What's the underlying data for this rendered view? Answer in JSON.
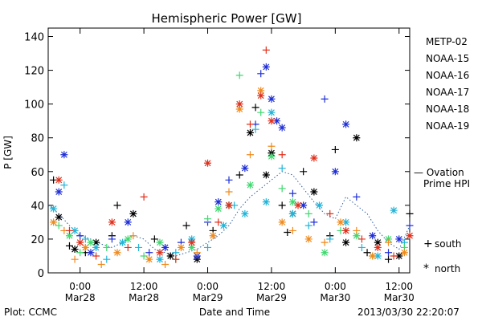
{
  "chart_data": {
    "type": "scatter",
    "title": "Hemispheric Power [GW]",
    "ylabel": "P [GW]",
    "xlabel": "Date and Time",
    "ylim": [
      0,
      145
    ],
    "yticks": [
      0,
      20,
      40,
      60,
      80,
      100,
      120,
      140
    ],
    "xlim_hours": [
      -6,
      62
    ],
    "xticks": [
      {
        "h": 0,
        "time": "0:00",
        "date": "Mar28"
      },
      {
        "h": 12,
        "time": "12:00",
        "date": "Mar28"
      },
      {
        "h": 24,
        "time": "0:00",
        "date": "Mar29"
      },
      {
        "h": 36,
        "time": "12:00",
        "date": "Mar29"
      },
      {
        "h": 48,
        "time": "0:00",
        "date": "Mar30"
      },
      {
        "h": 60,
        "time": "12:00",
        "date": "Mar30"
      }
    ],
    "footer_left": "Plot: CCMC",
    "footer_right": "2013/03/30 22:20:07",
    "legend_placement": "right",
    "symbol_legend": [
      {
        "symbol": "+",
        "label": "south"
      },
      {
        "symbol": "*",
        "label": "north"
      }
    ],
    "model": {
      "label_line1": "— Ovation",
      "label_line2": "Prime HPI",
      "color": "#2f5fa8",
      "style": "dotted",
      "points": [
        [
          -6,
          40
        ],
        [
          -4,
          35
        ],
        [
          -2,
          28
        ],
        [
          0,
          22
        ],
        [
          2,
          20
        ],
        [
          4,
          17
        ],
        [
          6,
          15
        ],
        [
          8,
          18
        ],
        [
          10,
          22
        ],
        [
          12,
          20
        ],
        [
          14,
          14
        ],
        [
          16,
          12
        ],
        [
          18,
          10
        ],
        [
          20,
          12
        ],
        [
          22,
          14
        ],
        [
          24,
          18
        ],
        [
          26,
          22
        ],
        [
          28,
          28
        ],
        [
          30,
          38
        ],
        [
          32,
          45
        ],
        [
          34,
          50
        ],
        [
          36,
          55
        ],
        [
          38,
          60
        ],
        [
          40,
          58
        ],
        [
          42,
          50
        ],
        [
          44,
          42
        ],
        [
          46,
          35
        ],
        [
          48,
          32
        ],
        [
          50,
          45
        ],
        [
          52,
          40
        ],
        [
          54,
          35
        ],
        [
          56,
          25
        ],
        [
          58,
          18
        ],
        [
          60,
          14
        ],
        [
          62,
          28
        ]
      ]
    },
    "series": [
      {
        "name": "METP-02",
        "color": "#000000",
        "points": [
          [
            -5,
            55,
            "s"
          ],
          [
            -4,
            33,
            "n"
          ],
          [
            -2,
            16,
            "s"
          ],
          [
            -1,
            14,
            "n"
          ],
          [
            1,
            12,
            "s"
          ],
          [
            3,
            18,
            "n"
          ],
          [
            6,
            22,
            "s"
          ],
          [
            7,
            40,
            "s"
          ],
          [
            10,
            35,
            "n"
          ],
          [
            14,
            20,
            "s"
          ],
          [
            17,
            10,
            "n"
          ],
          [
            20,
            28,
            "s"
          ],
          [
            22,
            8,
            "n"
          ],
          [
            25,
            25,
            "s"
          ],
          [
            28,
            40,
            "n"
          ],
          [
            30,
            58,
            "s"
          ],
          [
            32,
            83,
            "n"
          ],
          [
            33,
            98,
            "s"
          ],
          [
            35,
            58,
            "n"
          ],
          [
            36,
            71,
            "n"
          ],
          [
            38,
            40,
            "s"
          ],
          [
            39,
            24,
            "s"
          ],
          [
            40,
            35,
            "n"
          ],
          [
            42,
            60,
            "s"
          ],
          [
            44,
            48,
            "n"
          ],
          [
            47,
            22,
            "s"
          ],
          [
            48,
            73,
            "s"
          ],
          [
            50,
            18,
            "n"
          ],
          [
            52,
            80,
            "n"
          ],
          [
            54,
            12,
            "s"
          ],
          [
            56,
            18,
            "n"
          ],
          [
            58,
            8,
            "s"
          ],
          [
            60,
            10,
            "n"
          ],
          [
            62,
            35,
            "s"
          ]
        ]
      },
      {
        "name": "NOAA-15",
        "color": "#1f2fd6",
        "points": [
          [
            -4,
            48,
            "n"
          ],
          [
            -3,
            70,
            "n"
          ],
          [
            0,
            22,
            "s"
          ],
          [
            2,
            12,
            "n"
          ],
          [
            6,
            20,
            "s"
          ],
          [
            9,
            30,
            "n"
          ],
          [
            13,
            12,
            "s"
          ],
          [
            16,
            15,
            "n"
          ],
          [
            19,
            18,
            "s"
          ],
          [
            22,
            10,
            "n"
          ],
          [
            24,
            30,
            "s"
          ],
          [
            26,
            42,
            "n"
          ],
          [
            28,
            55,
            "s"
          ],
          [
            31,
            62,
            "n"
          ],
          [
            33,
            88,
            "s"
          ],
          [
            34,
            118,
            "s"
          ],
          [
            35,
            122,
            "n"
          ],
          [
            36,
            103,
            "n"
          ],
          [
            37,
            90,
            "n"
          ],
          [
            38,
            86,
            "n"
          ],
          [
            40,
            47,
            "s"
          ],
          [
            42,
            40,
            "n"
          ],
          [
            44,
            30,
            "s"
          ],
          [
            46,
            103,
            "s"
          ],
          [
            48,
            60,
            "n"
          ],
          [
            50,
            88,
            "n"
          ],
          [
            52,
            45,
            "s"
          ],
          [
            55,
            22,
            "n"
          ],
          [
            58,
            12,
            "s"
          ],
          [
            60,
            20,
            "n"
          ],
          [
            62,
            28,
            "s"
          ]
        ]
      },
      {
        "name": "NOAA-16",
        "color": "#22b4d8",
        "points": [
          [
            -5,
            38,
            "n"
          ],
          [
            -3,
            52,
            "s"
          ],
          [
            -1,
            25,
            "n"
          ],
          [
            1,
            20,
            "s"
          ],
          [
            3,
            15,
            "n"
          ],
          [
            5,
            8,
            "s"
          ],
          [
            8,
            18,
            "n"
          ],
          [
            11,
            15,
            "s"
          ],
          [
            15,
            8,
            "n"
          ],
          [
            18,
            12,
            "s"
          ],
          [
            21,
            20,
            "n"
          ],
          [
            24,
            15,
            "s"
          ],
          [
            27,
            28,
            "n"
          ],
          [
            29,
            40,
            "s"
          ],
          [
            31,
            35,
            "n"
          ],
          [
            33,
            85,
            "s"
          ],
          [
            35,
            42,
            "n"
          ],
          [
            36,
            95,
            "n"
          ],
          [
            38,
            62,
            "s"
          ],
          [
            40,
            35,
            "n"
          ],
          [
            43,
            28,
            "s"
          ],
          [
            45,
            40,
            "n"
          ],
          [
            47,
            20,
            "s"
          ],
          [
            50,
            30,
            "n"
          ],
          [
            53,
            15,
            "s"
          ],
          [
            56,
            10,
            "n"
          ],
          [
            59,
            37,
            "n"
          ],
          [
            61,
            18,
            "s"
          ]
        ]
      },
      {
        "name": "NOAA-17",
        "color": "#3ed86e",
        "points": [
          [
            -4,
            28,
            "s"
          ],
          [
            -2,
            22,
            "n"
          ],
          [
            0,
            12,
            "s"
          ],
          [
            2,
            18,
            "n"
          ],
          [
            5,
            15,
            "s"
          ],
          [
            9,
            20,
            "n"
          ],
          [
            12,
            10,
            "s"
          ],
          [
            15,
            18,
            "n"
          ],
          [
            18,
            8,
            "s"
          ],
          [
            21,
            15,
            "n"
          ],
          [
            24,
            32,
            "s"
          ],
          [
            26,
            38,
            "n"
          ],
          [
            28,
            40,
            "s"
          ],
          [
            30,
            117,
            "s"
          ],
          [
            32,
            52,
            "n"
          ],
          [
            34,
            95,
            "s"
          ],
          [
            36,
            69,
            "n"
          ],
          [
            38,
            50,
            "s"
          ],
          [
            40,
            42,
            "n"
          ],
          [
            43,
            35,
            "s"
          ],
          [
            46,
            12,
            "n"
          ],
          [
            49,
            25,
            "s"
          ],
          [
            52,
            22,
            "n"
          ],
          [
            55,
            10,
            "s"
          ],
          [
            58,
            20,
            "n"
          ],
          [
            61,
            15,
            "s"
          ]
        ]
      },
      {
        "name": "NOAA-18",
        "color": "#f08a1c",
        "points": [
          [
            -5,
            30,
            "n"
          ],
          [
            -3,
            25,
            "s"
          ],
          [
            -1,
            8,
            "s"
          ],
          [
            1,
            15,
            "n"
          ],
          [
            4,
            5,
            "s"
          ],
          [
            7,
            12,
            "n"
          ],
          [
            10,
            22,
            "s"
          ],
          [
            13,
            8,
            "n"
          ],
          [
            16,
            5,
            "s"
          ],
          [
            19,
            15,
            "n"
          ],
          [
            22,
            12,
            "s"
          ],
          [
            25,
            22,
            "n"
          ],
          [
            28,
            48,
            "s"
          ],
          [
            30,
            97,
            "n"
          ],
          [
            32,
            70,
            "s"
          ],
          [
            34,
            108,
            "n"
          ],
          [
            36,
            75,
            "s"
          ],
          [
            38,
            30,
            "n"
          ],
          [
            40,
            25,
            "s"
          ],
          [
            43,
            20,
            "n"
          ],
          [
            46,
            18,
            "s"
          ],
          [
            49,
            30,
            "n"
          ],
          [
            52,
            25,
            "s"
          ],
          [
            55,
            10,
            "n"
          ],
          [
            58,
            18,
            "s"
          ],
          [
            61,
            12,
            "n"
          ]
        ]
      },
      {
        "name": "NOAA-19",
        "color": "#e0301c",
        "points": [
          [
            -4,
            55,
            "n"
          ],
          [
            -2,
            25,
            "s"
          ],
          [
            0,
            18,
            "n"
          ],
          [
            3,
            10,
            "s"
          ],
          [
            6,
            30,
            "n"
          ],
          [
            9,
            15,
            "s"
          ],
          [
            12,
            45,
            "s"
          ],
          [
            15,
            12,
            "n"
          ],
          [
            18,
            8,
            "s"
          ],
          [
            21,
            18,
            "n"
          ],
          [
            24,
            65,
            "n"
          ],
          [
            26,
            30,
            "s"
          ],
          [
            28,
            40,
            "n"
          ],
          [
            30,
            100,
            "n"
          ],
          [
            32,
            88,
            "s"
          ],
          [
            34,
            105,
            "n"
          ],
          [
            35,
            132,
            "s"
          ],
          [
            36,
            90,
            "n"
          ],
          [
            38,
            70,
            "s"
          ],
          [
            41,
            40,
            "n"
          ],
          [
            44,
            68,
            "n"
          ],
          [
            47,
            35,
            "s"
          ],
          [
            50,
            25,
            "n"
          ],
          [
            53,
            20,
            "s"
          ],
          [
            56,
            15,
            "n"
          ],
          [
            59,
            10,
            "s"
          ],
          [
            62,
            22,
            "n"
          ]
        ]
      }
    ]
  }
}
